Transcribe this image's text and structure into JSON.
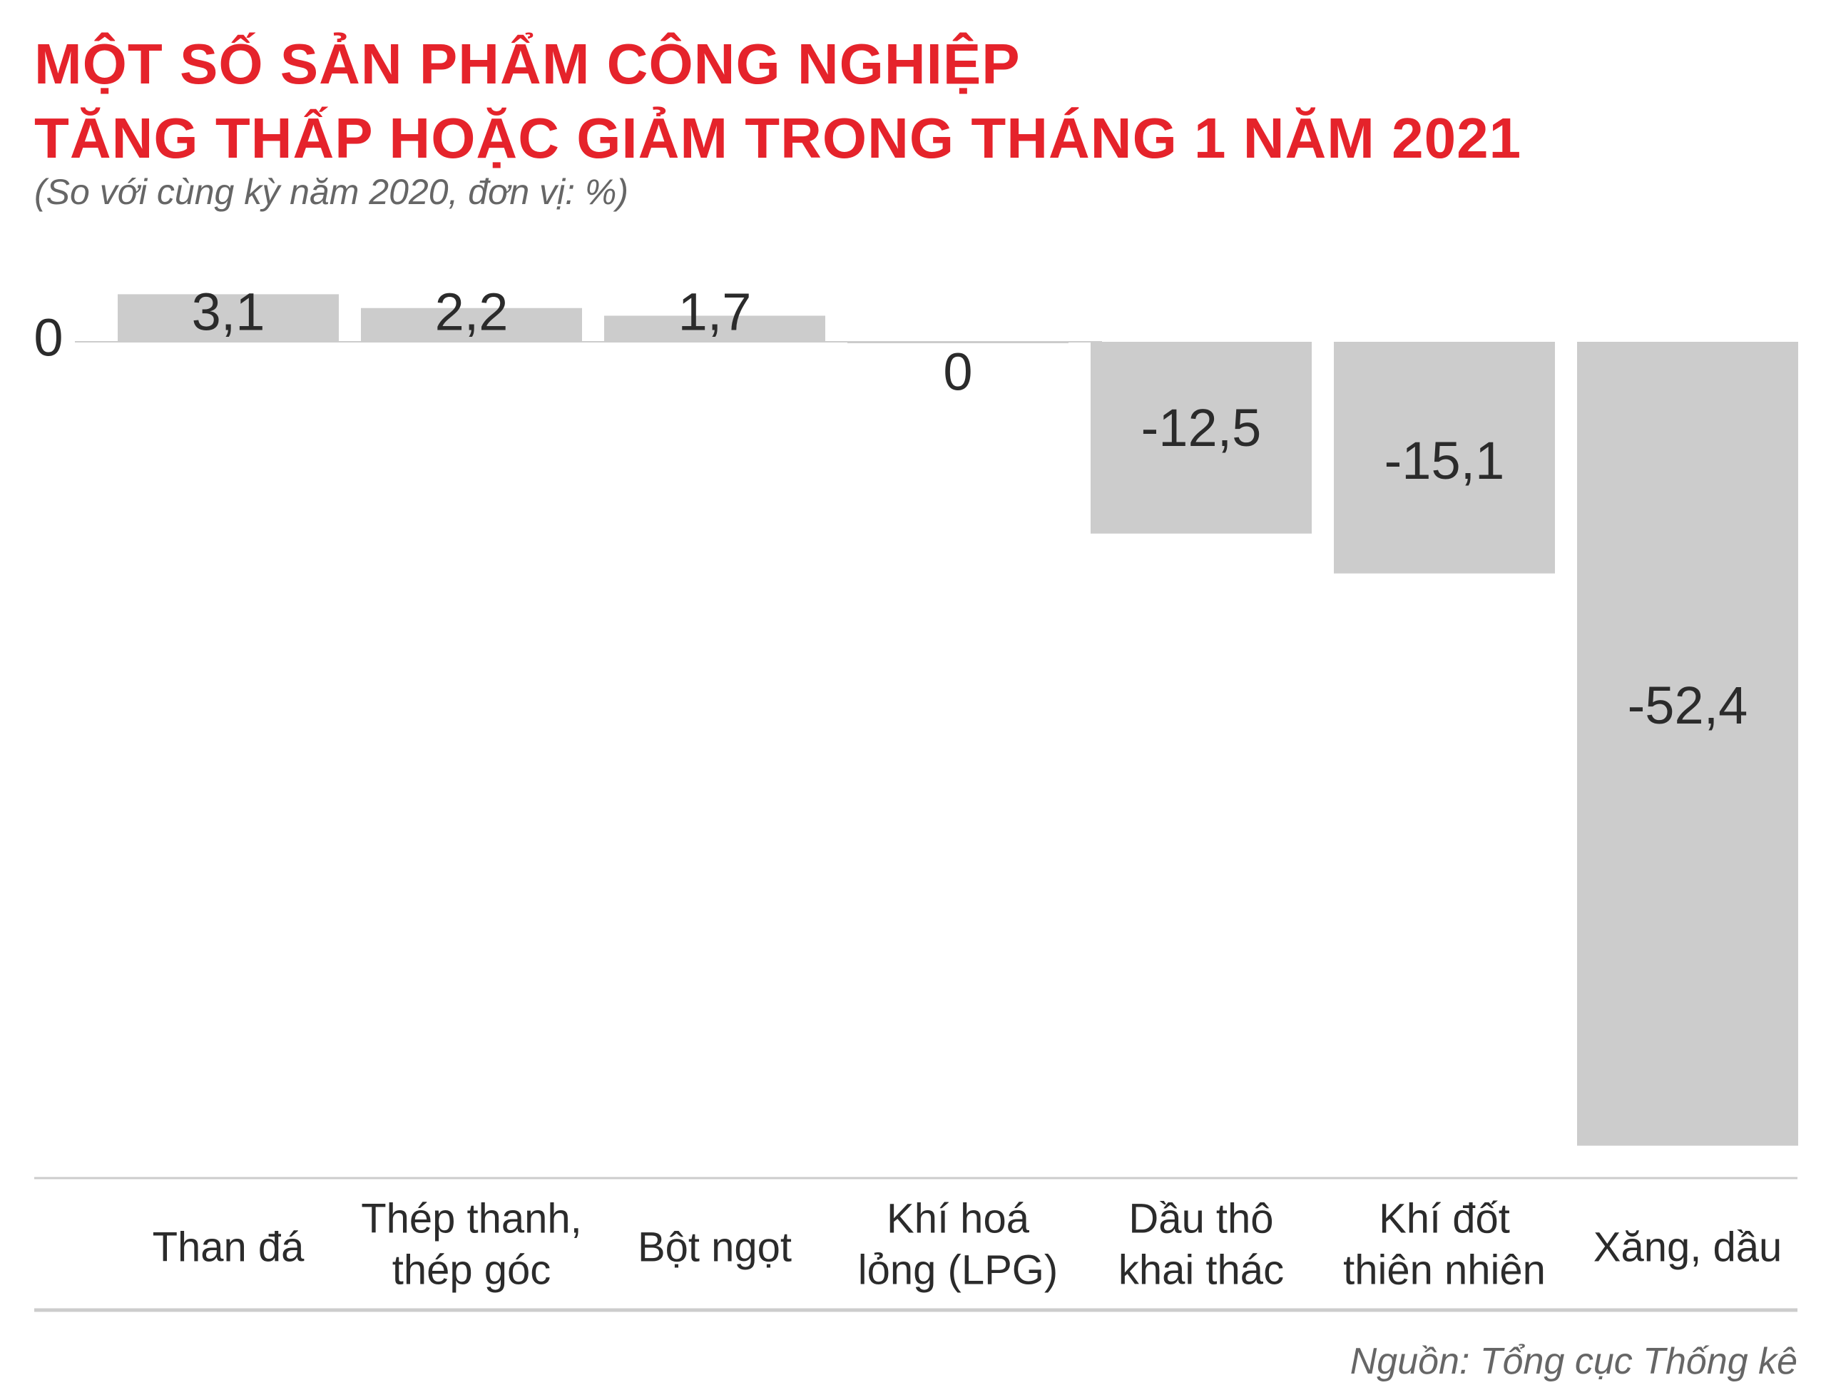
{
  "header": {
    "title_line1": "MỘT SỐ SẢN PHẨM CÔNG NGHIỆP",
    "title_line2": "TĂNG THẤP HOẶC GIẢM TRONG THÁNG 1 NĂM 2021",
    "subtitle": "(So với cùng kỳ năm 2020, đơn vị: %)"
  },
  "footer": {
    "source": "Nguồn: Tổng cục Thống kê"
  },
  "colors": {
    "title": "#e5232b",
    "bar": "#cccccc",
    "text": "#2b2b2b",
    "muted": "#666666",
    "rule": "#cccccc"
  },
  "chart_data": {
    "type": "bar",
    "title": "",
    "xlabel": "",
    "ylabel": "",
    "zero_label": "0",
    "categories": [
      [
        "Than đá"
      ],
      [
        "Thép thanh,",
        "thép góc"
      ],
      [
        "Bột ngọt"
      ],
      [
        "Khí hoá",
        "lỏng (LPG)"
      ],
      [
        "Dầu thô",
        "khai thác"
      ],
      [
        "Khí đốt",
        "thiên nhiên"
      ],
      [
        "Xăng, dầu"
      ]
    ],
    "values": [
      3.1,
      2.2,
      1.7,
      0,
      -12.5,
      -15.1,
      -52.4
    ],
    "value_labels": [
      "3,1",
      "2,2",
      "1,7",
      "0",
      "-12,5",
      "-15,1",
      "-52,4"
    ],
    "grid": false,
    "legend": "none"
  }
}
